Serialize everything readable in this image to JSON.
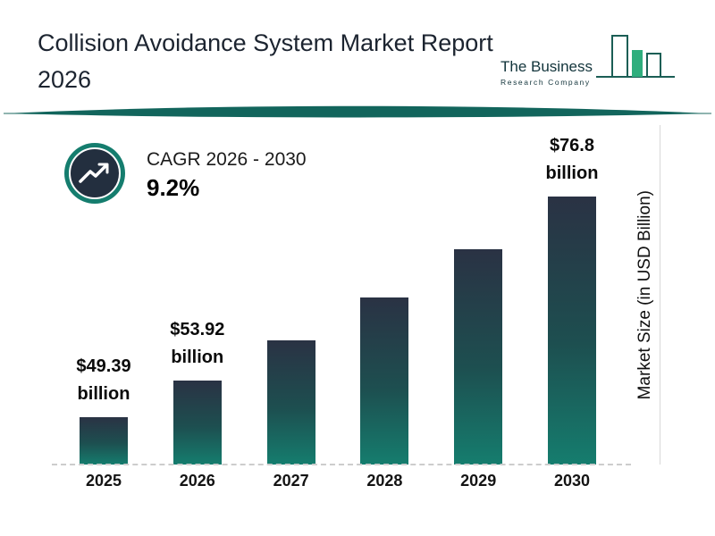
{
  "header": {
    "title_line1": "Collision Avoidance System Market Report",
    "title_line2": "2026",
    "logo": {
      "name_line1": "The Business",
      "name_line2": "Research Company"
    }
  },
  "cagr_badge": {
    "label": "CAGR 2026 - 2030",
    "value": "9.2%",
    "icon": "trending-up-icon"
  },
  "chart_data": {
    "type": "bar",
    "title": "Collision Avoidance System Market Report 2026",
    "categories": [
      "2025",
      "2026",
      "2027",
      "2028",
      "2029",
      "2030"
    ],
    "values": [
      49.39,
      53.92,
      58.9,
      64.3,
      70.2,
      76.8
    ],
    "estimated_indices": [
      2,
      3,
      4
    ],
    "bar_labels": [
      {
        "amount": "$49.39",
        "unit": "billion"
      },
      {
        "amount": "$53.92",
        "unit": "billion"
      },
      null,
      null,
      null,
      {
        "amount": "$76.8",
        "unit": "billion"
      }
    ],
    "xlabel": "",
    "ylabel": "Market Size (in USD Billion)",
    "ylim": [
      0,
      80
    ],
    "grid": false,
    "legend": false,
    "baseline_style": "dashed",
    "bar_color_top": "#2a3244",
    "bar_color_bottom": "#157d6e"
  },
  "colors": {
    "accent_teal": "#157d6e",
    "divider_teal": "#12655c",
    "text_dark": "#1c2430",
    "logo_green": "#2fae7d",
    "badge_inner": "#232f3f"
  }
}
